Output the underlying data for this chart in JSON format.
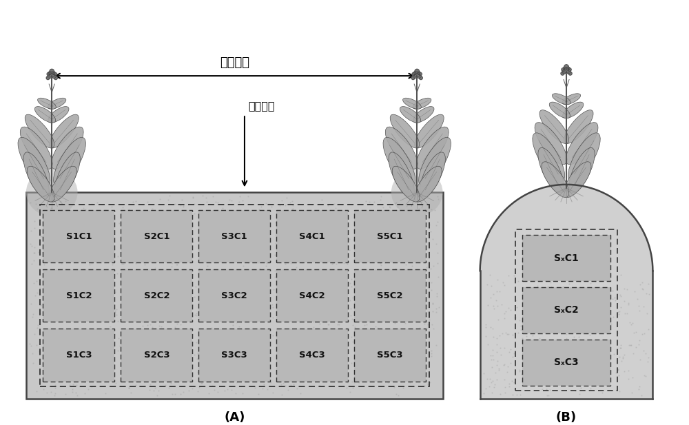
{
  "bg_color": "#ffffff",
  "soil_color_A": "#c8c8c8",
  "soil_color_B": "#d0d0d0",
  "cell_color": "#b8b8b8",
  "cell_border_color": "#333333",
  "outer_border_color": "#222222",
  "soil_border_color": "#444444",
  "label_A": "(A)",
  "label_B": "(B)",
  "text_crop_spacing": "作物株距",
  "text_fertilizer": "施肥位点",
  "grid_labels_A": [
    [
      "S1C1",
      "S2C1",
      "S3C1",
      "S4C1",
      "S5C1"
    ],
    [
      "S1C2",
      "S2C2",
      "S3C2",
      "S4C2",
      "S5C2"
    ],
    [
      "S1C3",
      "S2C3",
      "S3C3",
      "S4C3",
      "S5C3"
    ]
  ],
  "grid_labels_B": [
    "SₓC1",
    "SₓC2",
    "SₓC3"
  ],
  "plant_stem_color": "#555555",
  "plant_leaf_color": "#aaaaaa",
  "plant_leaf_edge": "#444444",
  "plant_flower_color": "#777777"
}
